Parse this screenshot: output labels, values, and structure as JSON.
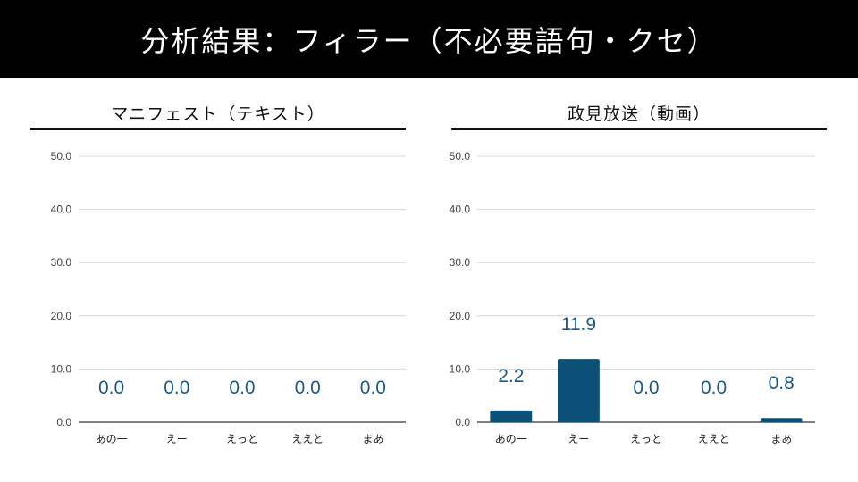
{
  "header": {
    "title": "分析結果：フィラー（不必要語句・クセ）"
  },
  "colors": {
    "bar": "#0c5078",
    "data_label": "#1b5a85",
    "header_bg": "#000000"
  },
  "chart_data": [
    {
      "type": "bar",
      "title": "マニフェスト（テキスト）",
      "categories": [
        "あの一",
        "えー",
        "えっと",
        "ええと",
        "まあ"
      ],
      "values": [
        0.0,
        0.0,
        0.0,
        0.0,
        0.0
      ],
      "value_labels": [
        "0.0",
        "0.0",
        "0.0",
        "0.0",
        "0.0"
      ],
      "y_ticks": [
        "0.0",
        "10.0",
        "20.0",
        "30.0",
        "40.0",
        "50.0"
      ],
      "ylim": [
        0,
        50
      ],
      "grid": true
    },
    {
      "type": "bar",
      "title": "政見放送（動画）",
      "categories": [
        "あの一",
        "えー",
        "えっと",
        "ええと",
        "まあ"
      ],
      "values": [
        2.2,
        11.9,
        0.0,
        0.0,
        0.8
      ],
      "value_labels": [
        "2.2",
        "11.9",
        "0.0",
        "0.0",
        "0.8"
      ],
      "y_ticks": [
        "0.0",
        "10.0",
        "20.0",
        "30.0",
        "40.0",
        "50.0"
      ],
      "ylim": [
        0,
        50
      ],
      "grid": true
    }
  ]
}
